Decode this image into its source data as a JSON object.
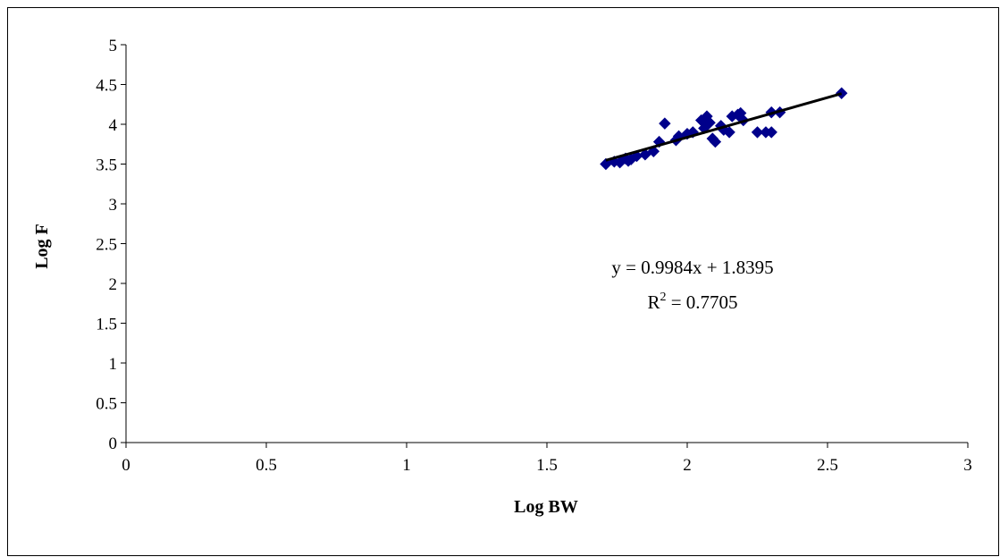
{
  "chart_data": {
    "type": "scatter",
    "xlabel": "Log BW",
    "ylabel": "Log F",
    "xlim": [
      0,
      3
    ],
    "ylim": [
      0,
      5
    ],
    "x_ticks": [
      "0",
      "0.5",
      "1",
      "1.5",
      "2",
      "2.5",
      "3"
    ],
    "y_ticks": [
      "0",
      "0.5",
      "1",
      "1.5",
      "2",
      "2.5",
      "3",
      "3.5",
      "4",
      "4.5",
      "5"
    ],
    "x_tick_values": [
      0,
      0.5,
      1,
      1.5,
      2,
      2.5,
      3
    ],
    "y_tick_values": [
      0,
      0.5,
      1,
      1.5,
      2,
      2.5,
      3,
      3.5,
      4,
      4.5,
      5
    ],
    "grid": false,
    "legend": "none",
    "marker_color": "#00008B",
    "trendline_color": "#000000",
    "series": [
      {
        "points": [
          {
            "x": 1.71,
            "y": 3.5
          },
          {
            "x": 1.74,
            "y": 3.53
          },
          {
            "x": 1.76,
            "y": 3.52
          },
          {
            "x": 1.78,
            "y": 3.57
          },
          {
            "x": 1.79,
            "y": 3.54
          },
          {
            "x": 1.8,
            "y": 3.56
          },
          {
            "x": 1.82,
            "y": 3.6
          },
          {
            "x": 1.85,
            "y": 3.62
          },
          {
            "x": 1.88,
            "y": 3.66
          },
          {
            "x": 1.9,
            "y": 3.78
          },
          {
            "x": 1.92,
            "y": 4.01
          },
          {
            "x": 1.96,
            "y": 3.8
          },
          {
            "x": 1.97,
            "y": 3.85
          },
          {
            "x": 2.0,
            "y": 3.88
          },
          {
            "x": 2.02,
            "y": 3.9
          },
          {
            "x": 2.05,
            "y": 4.05
          },
          {
            "x": 2.06,
            "y": 3.95
          },
          {
            "x": 2.07,
            "y": 4.1
          },
          {
            "x": 2.08,
            "y": 4.02
          },
          {
            "x": 2.09,
            "y": 3.82
          },
          {
            "x": 2.1,
            "y": 3.78
          },
          {
            "x": 2.12,
            "y": 3.98
          },
          {
            "x": 2.13,
            "y": 3.93
          },
          {
            "x": 2.15,
            "y": 3.9
          },
          {
            "x": 2.16,
            "y": 4.1
          },
          {
            "x": 2.18,
            "y": 4.12
          },
          {
            "x": 2.19,
            "y": 4.14
          },
          {
            "x": 2.2,
            "y": 4.05
          },
          {
            "x": 2.25,
            "y": 3.9
          },
          {
            "x": 2.28,
            "y": 3.9
          },
          {
            "x": 2.3,
            "y": 3.9
          },
          {
            "x": 2.3,
            "y": 4.15
          },
          {
            "x": 2.33,
            "y": 4.15
          },
          {
            "x": 2.55,
            "y": 4.39
          }
        ]
      }
    ],
    "trendline": {
      "slope": 0.9984,
      "intercept": 1.8395,
      "x_range": [
        1.71,
        2.55
      ]
    },
    "annotations": {
      "equation": "y = 0.9984x + 1.8395",
      "r2_prefix": "R",
      "r2_sup": "2",
      "r2_suffix": " = 0.7705"
    }
  }
}
